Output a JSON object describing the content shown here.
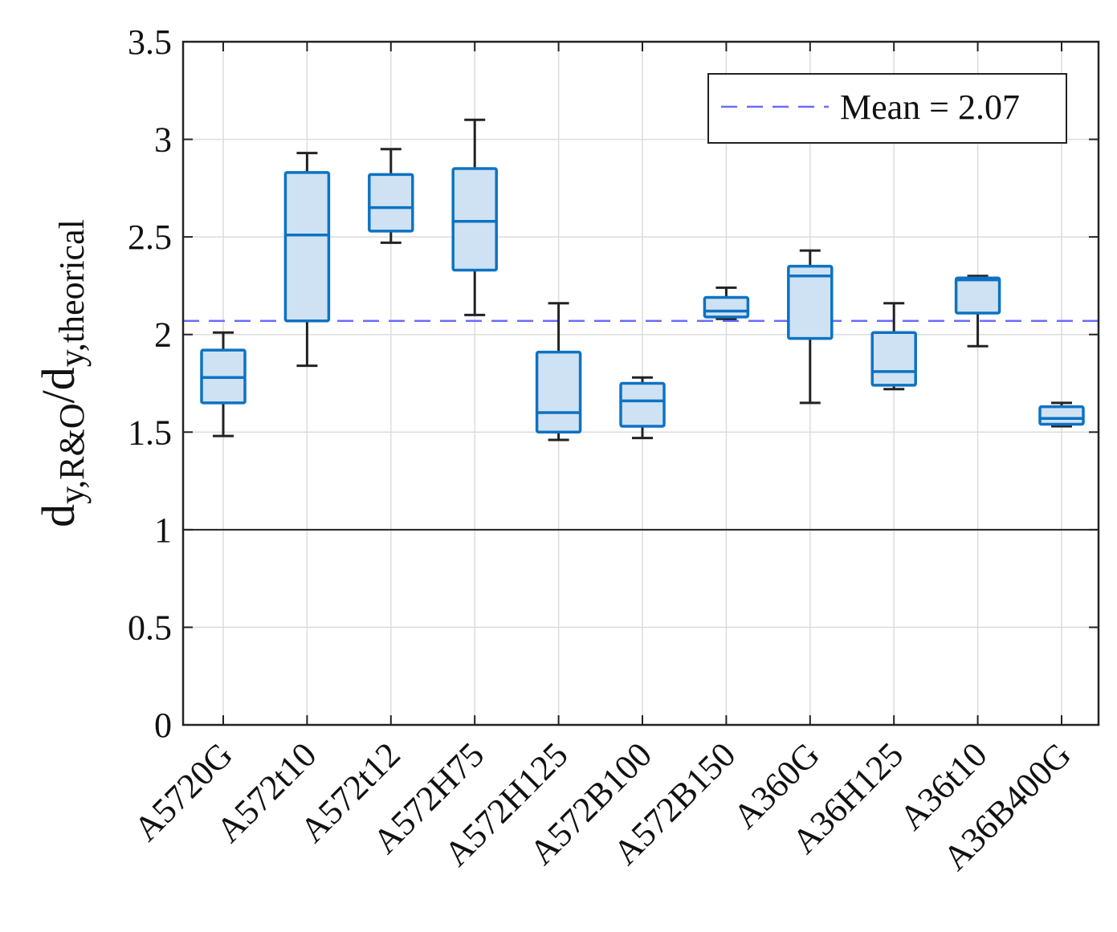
{
  "chart_data": {
    "type": "boxplot",
    "title": "",
    "xlabel": "",
    "ylabel": {
      "main": "d",
      "sub1": "y,R&O",
      "slash": "/d",
      "sub2": "y,theorical"
    },
    "ylim": [
      0,
      3.5
    ],
    "yticks": [
      0,
      0.5,
      1,
      1.5,
      2,
      2.5,
      3,
      3.5
    ],
    "ytick_labels": [
      "0",
      "0.5",
      "1",
      "1.5",
      "2",
      "2.5",
      "3",
      "3.5"
    ],
    "grid": true,
    "reference_line": 1,
    "mean_line": {
      "value": 2.07,
      "label": "Mean = 2.07",
      "color": "#6b6bff"
    },
    "legend_position": "top-right",
    "colors": {
      "box_fill": "#cfe2f3",
      "box_edge": "#0e72c3",
      "whisker": "#222222",
      "axis": "#222222",
      "grid": "#dcdcdc"
    },
    "categories": [
      "A5720G",
      "A572t10",
      "A572t12",
      "A572H75",
      "A572H125",
      "A572B100",
      "A572B150",
      "A360G",
      "A36H125",
      "A36t10",
      "A36B400G"
    ],
    "boxes": [
      {
        "name": "A5720G",
        "min": 1.48,
        "q1": 1.65,
        "median": 1.78,
        "q3": 1.92,
        "max": 2.01
      },
      {
        "name": "A572t10",
        "min": 1.84,
        "q1": 2.07,
        "median": 2.51,
        "q3": 2.83,
        "max": 2.93
      },
      {
        "name": "A572t12",
        "min": 2.47,
        "q1": 2.53,
        "median": 2.65,
        "q3": 2.82,
        "max": 2.95
      },
      {
        "name": "A572H75",
        "min": 2.1,
        "q1": 2.33,
        "median": 2.58,
        "q3": 2.85,
        "max": 3.1
      },
      {
        "name": "A572H125",
        "min": 1.46,
        "q1": 1.5,
        "median": 1.6,
        "q3": 1.91,
        "max": 2.16
      },
      {
        "name": "A572B100",
        "min": 1.47,
        "q1": 1.53,
        "median": 1.66,
        "q3": 1.75,
        "max": 1.78
      },
      {
        "name": "A572B150",
        "min": 2.08,
        "q1": 2.09,
        "median": 2.12,
        "q3": 2.19,
        "max": 2.24
      },
      {
        "name": "A360G",
        "min": 1.65,
        "q1": 1.98,
        "median": 2.3,
        "q3": 2.35,
        "max": 2.43
      },
      {
        "name": "A36H125",
        "min": 1.72,
        "q1": 1.74,
        "median": 1.81,
        "q3": 2.01,
        "max": 2.16
      },
      {
        "name": "A36t10",
        "min": 1.94,
        "q1": 2.11,
        "median": 2.28,
        "q3": 2.29,
        "max": 2.3
      },
      {
        "name": "A36B400G",
        "min": 1.53,
        "q1": 1.54,
        "median": 1.57,
        "q3": 1.63,
        "max": 1.65
      }
    ]
  }
}
